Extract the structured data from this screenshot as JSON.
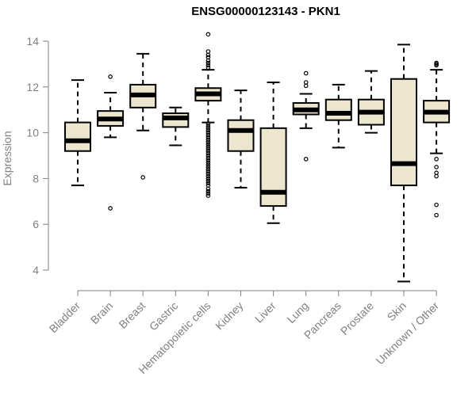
{
  "chart_data": {
    "type": "box",
    "title": "ENSG00000123143 - PKN1",
    "xlabel": "",
    "ylabel": "Expression",
    "ylim": [
      3.6,
      14.3
    ],
    "yticks": [
      4,
      6,
      8,
      10,
      12,
      14
    ],
    "colors": {
      "box_fill": "#ede6cf",
      "outline": "#000000",
      "axis": "#808080"
    },
    "categories": [
      "Bladder",
      "Brain",
      "Breast",
      "Gastric",
      "Hematopoietic cells",
      "Kidney",
      "Liver",
      "Lung",
      "Pancreas",
      "Prostate",
      "Skin",
      "Unknown / Other"
    ],
    "boxes": [
      {
        "category": "Bladder",
        "whisker_low": 7.7,
        "q1": 9.2,
        "median": 9.65,
        "q3": 10.45,
        "whisker_high": 12.3,
        "outliers": []
      },
      {
        "category": "Brain",
        "whisker_low": 9.8,
        "q1": 10.3,
        "median": 10.6,
        "q3": 10.95,
        "whisker_high": 11.75,
        "outliers": [
          12.45,
          6.7
        ]
      },
      {
        "category": "Breast",
        "whisker_low": 10.1,
        "q1": 11.1,
        "median": 11.65,
        "q3": 12.1,
        "whisker_high": 13.45,
        "outliers": [
          8.05
        ]
      },
      {
        "category": "Gastric",
        "whisker_low": 9.45,
        "q1": 10.25,
        "median": 10.65,
        "q3": 10.85,
        "whisker_high": 11.1,
        "outliers": []
      },
      {
        "category": "Hematopoietic cells",
        "whisker_low": 10.45,
        "q1": 11.4,
        "median": 11.7,
        "q3": 11.95,
        "whisker_high": 12.75,
        "outliers": [
          14.3,
          13.55,
          13.4,
          13.3,
          13.15,
          13.05,
          12.95,
          12.85,
          10.4,
          10.3,
          10.2,
          10.1,
          10.0,
          9.9,
          9.8,
          9.7,
          9.6,
          9.5,
          9.4,
          9.3,
          9.2,
          9.1,
          9.0,
          8.9,
          8.8,
          8.7,
          8.6,
          8.5,
          8.4,
          8.3,
          8.2,
          8.1,
          8.0,
          7.9,
          7.8,
          7.7,
          7.55,
          7.45,
          7.35,
          7.25
        ]
      },
      {
        "category": "Kidney",
        "whisker_low": 7.6,
        "q1": 9.2,
        "median": 10.1,
        "q3": 10.55,
        "whisker_high": 11.85,
        "outliers": []
      },
      {
        "category": "Liver",
        "whisker_low": 6.05,
        "q1": 6.8,
        "median": 7.4,
        "q3": 10.2,
        "whisker_high": 12.2,
        "outliers": []
      },
      {
        "category": "Lung",
        "whisker_low": 10.2,
        "q1": 10.8,
        "median": 11.0,
        "q3": 11.3,
        "whisker_high": 11.7,
        "outliers": [
          12.6,
          12.2,
          12.05,
          8.85
        ]
      },
      {
        "category": "Pancreas",
        "whisker_low": 9.35,
        "q1": 10.55,
        "median": 10.85,
        "q3": 11.45,
        "whisker_high": 12.1,
        "outliers": []
      },
      {
        "category": "Prostate",
        "whisker_low": 10.0,
        "q1": 10.35,
        "median": 10.9,
        "q3": 11.45,
        "whisker_high": 12.7,
        "outliers": []
      },
      {
        "category": "Skin",
        "whisker_low": 3.5,
        "q1": 7.7,
        "median": 8.65,
        "q3": 12.35,
        "whisker_high": 13.85,
        "outliers": []
      },
      {
        "category": "Unknown / Other",
        "whisker_low": 9.1,
        "q1": 10.45,
        "median": 10.9,
        "q3": 11.4,
        "whisker_high": 12.75,
        "outliers": [
          13.05,
          13.0,
          12.95,
          8.85,
          8.5,
          8.25,
          8.1,
          6.85,
          6.4
        ]
      }
    ]
  }
}
